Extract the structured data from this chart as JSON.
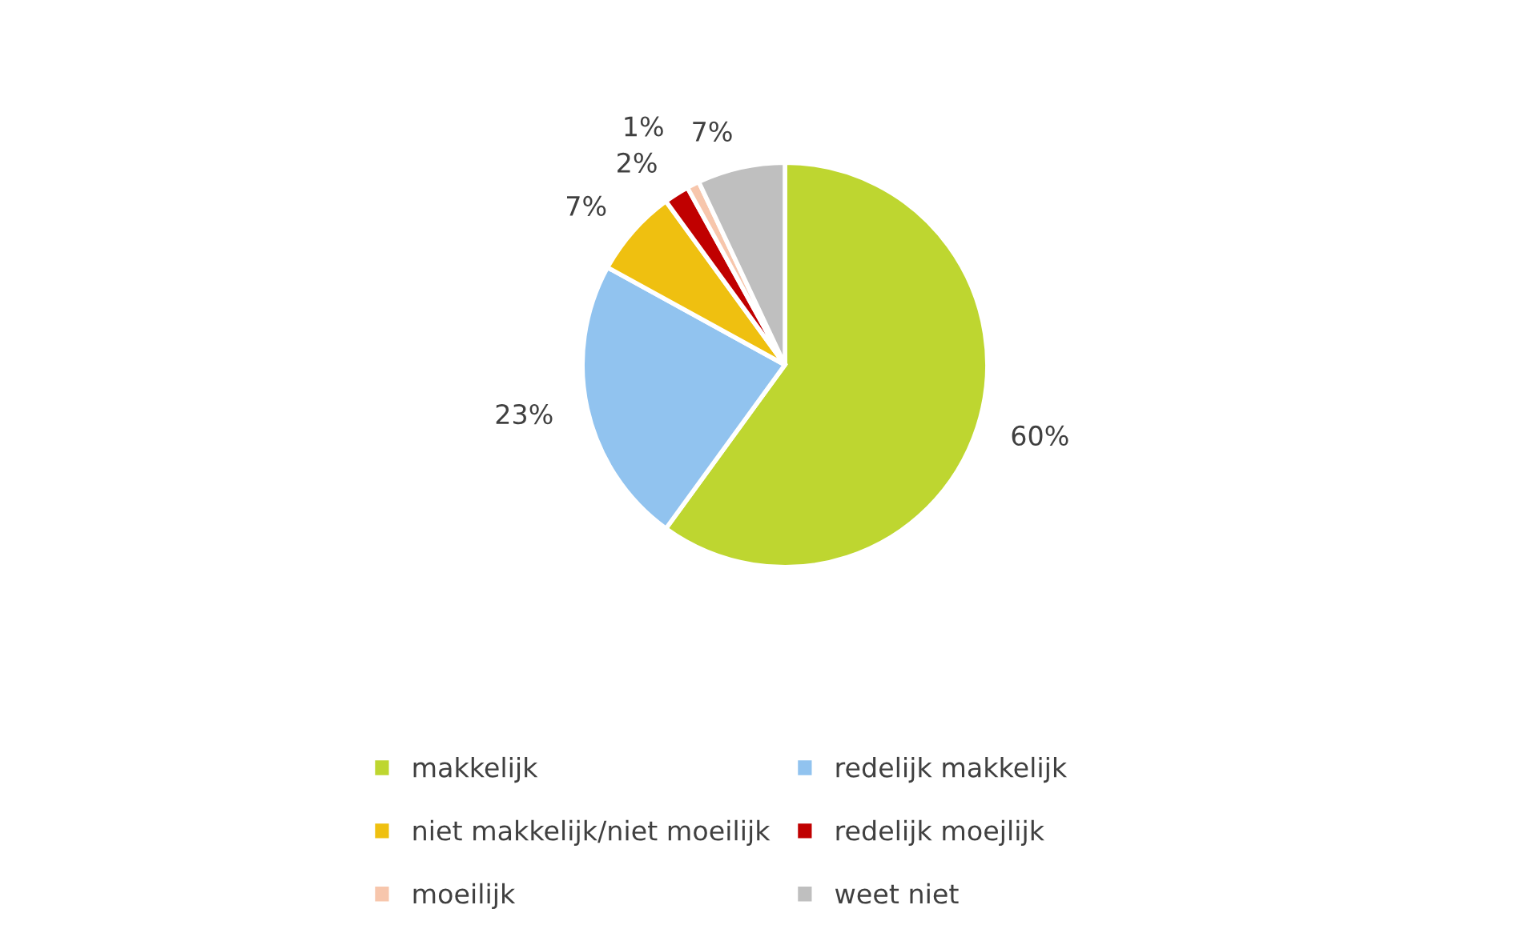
{
  "chart_data": {
    "type": "pie",
    "categories": [
      "makkelijk",
      "redelijk makkelijk",
      "niet makkelijk/niet moeilijk",
      "redelijk moejlijk",
      "moeilijk",
      "weet niet"
    ],
    "values": [
      60,
      23,
      7,
      2,
      1,
      7
    ],
    "value_labels": [
      "60%",
      "23%",
      "7%",
      "2%",
      "1%",
      "7%"
    ],
    "colors": [
      "#bed630",
      "#91c3ef",
      "#efc010",
      "#c00000",
      "#f7c6ac",
      "#bfbfbf"
    ],
    "legend": "bottom"
  }
}
